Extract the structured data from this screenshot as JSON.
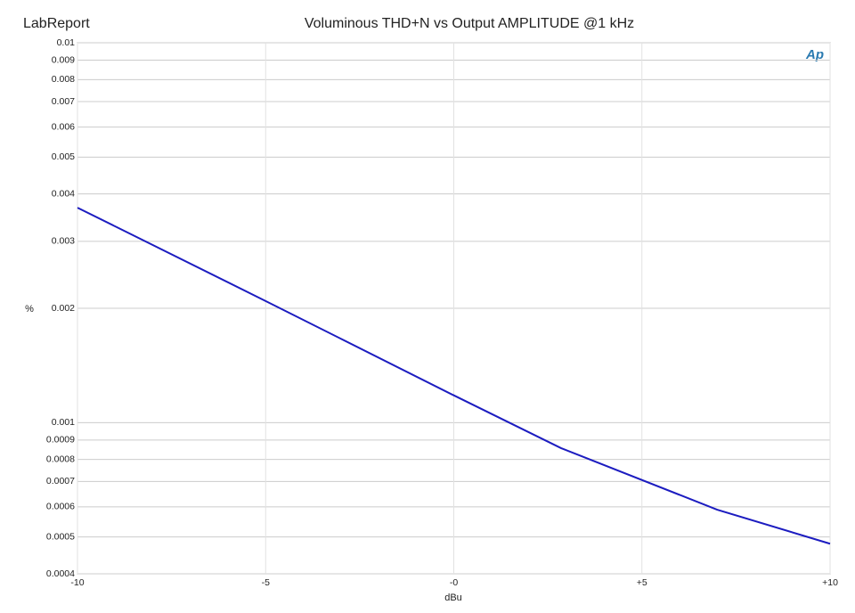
{
  "chart_data": {
    "type": "line",
    "brand": "LabReport",
    "title": "Voluminous THD+N vs Output AMPLITUDE @1 kHz",
    "logo": "Ap",
    "xlabel": "dBu",
    "ylabel": "%",
    "x": [
      -10,
      -5,
      0,
      2.85,
      7,
      10
    ],
    "series": [
      {
        "name": "THD+N",
        "color": "#1c1cc0",
        "values": [
          0.00368,
          0.00209,
          0.00118,
          0.000857,
          0.00059,
          0.00048
        ]
      }
    ],
    "xlim": [
      -10,
      10
    ],
    "xticks": [
      -10,
      -5,
      {
        "value": 0,
        "label": "-0"
      },
      {
        "value": 5,
        "label": "+5"
      },
      {
        "value": 10,
        "label": "+10"
      }
    ],
    "ylim": [
      0.0004,
      0.01
    ],
    "yticks": [
      0.01,
      0.009,
      0.008,
      0.007,
      0.006,
      0.005,
      0.004,
      0.003,
      0.002,
      0.001,
      0.0009,
      0.0008,
      0.0007,
      0.0006,
      0.0005,
      0.0004
    ],
    "ylog": true,
    "grid": true
  }
}
